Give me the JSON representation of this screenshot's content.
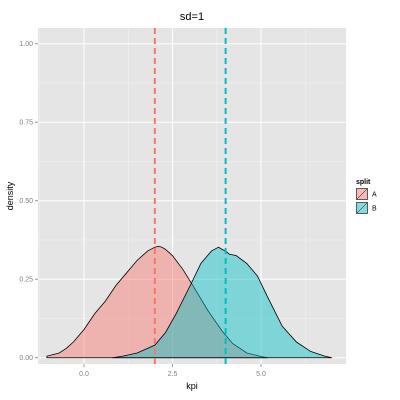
{
  "chart_data": {
    "type": "area",
    "title": "sd=1",
    "xlabel": "kpi",
    "ylabel": "density",
    "xlim": [
      -1.3,
      7.4
    ],
    "ylim": [
      -0.02,
      1.05
    ],
    "x_ticks": [
      0.0,
      2.5,
      5.0
    ],
    "x_tick_labels": [
      "0.0",
      "2.5",
      "5.0"
    ],
    "y_ticks": [
      0.0,
      0.25,
      0.5,
      0.75,
      1.0
    ],
    "y_tick_labels": [
      "0.00",
      "0.25",
      "0.50",
      "0.75",
      "1.00"
    ],
    "grid": true,
    "legend": {
      "title": "split",
      "position": "right"
    },
    "series": [
      {
        "name": "A",
        "color": "#F8766D",
        "mean": 2.0,
        "x": [
          -1.05,
          -0.7,
          -0.5,
          -0.3,
          0.0,
          0.3,
          0.6,
          0.9,
          1.2,
          1.5,
          1.8,
          2.0,
          2.1,
          2.2,
          2.3,
          2.5,
          2.8,
          3.1,
          3.5,
          3.9,
          4.2,
          4.6,
          5.0,
          5.2
        ],
        "y": [
          0.005,
          0.015,
          0.03,
          0.05,
          0.09,
          0.14,
          0.18,
          0.23,
          0.27,
          0.31,
          0.34,
          0.352,
          0.355,
          0.352,
          0.345,
          0.325,
          0.28,
          0.225,
          0.15,
          0.085,
          0.045,
          0.015,
          0.004,
          0.0
        ]
      },
      {
        "name": "B",
        "color": "#00BFC4",
        "mean": 4.0,
        "x": [
          0.8,
          1.1,
          1.5,
          2.0,
          2.3,
          2.6,
          3.0,
          3.3,
          3.6,
          3.8,
          3.9,
          4.0,
          4.1,
          4.3,
          4.6,
          4.9,
          5.2,
          5.6,
          6.0,
          6.4,
          6.8,
          7.0
        ],
        "y": [
          0.0,
          0.005,
          0.015,
          0.04,
          0.08,
          0.14,
          0.23,
          0.3,
          0.34,
          0.352,
          0.345,
          0.34,
          0.33,
          0.325,
          0.3,
          0.26,
          0.19,
          0.1,
          0.05,
          0.02,
          0.005,
          0.0
        ]
      }
    ]
  }
}
